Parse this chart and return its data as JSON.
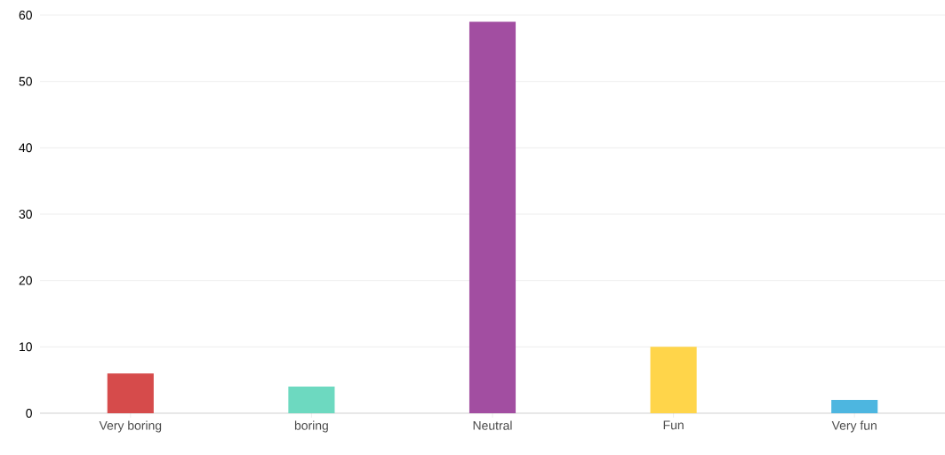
{
  "chart_data": {
    "type": "bar",
    "categories": [
      "Very boring",
      "boring",
      "Neutral",
      "Fun",
      "Very fun"
    ],
    "values": [
      6,
      4,
      59,
      10,
      2
    ],
    "colors": [
      "#d64b4b",
      "#6dd9c0",
      "#a24ea1",
      "#ffd54a",
      "#4db6e0"
    ],
    "ylim": [
      0,
      60
    ],
    "yticks": [
      0,
      10,
      20,
      30,
      40,
      50,
      60
    ],
    "grid": "y"
  }
}
